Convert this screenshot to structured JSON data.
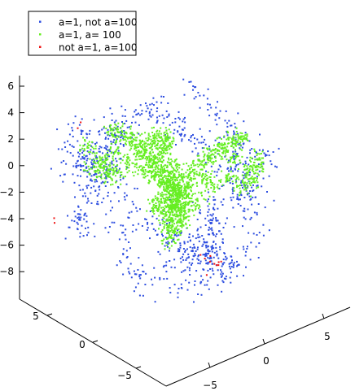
{
  "chart_data": {
    "type": "scatter",
    "projection": "3d",
    "grid": false,
    "legend_position": "top-left",
    "title": "",
    "xlabel": "",
    "ylabel": "",
    "zlabel": "",
    "xlim": [
      -8,
      8
    ],
    "ylim": [
      -8,
      8
    ],
    "zlim": [
      -9,
      7
    ],
    "z_ticks": [
      "6",
      "4",
      "2",
      "0",
      "−2",
      "−4",
      "−6",
      "−8"
    ],
    "left_axis_ticks": [
      "5",
      "0",
      "−5"
    ],
    "right_axis_ticks": [
      "−5",
      "0",
      "5"
    ],
    "series": [
      {
        "name": "a=1, not a=100",
        "color": "#2f4fe0",
        "points": [
          [
            -6.0,
            2.5,
            -0.3
          ],
          [
            -5.8,
            3.0,
            0.5
          ],
          [
            -5.5,
            2.8,
            0.2
          ],
          [
            -5.2,
            3.1,
            1.0
          ],
          [
            -4.8,
            2.6,
            0.8
          ],
          [
            -4.5,
            3.4,
            -0.5
          ],
          [
            -4.2,
            2.9,
            1.6
          ],
          [
            -3.8,
            3.3,
            0.0
          ],
          [
            -6.3,
            2.2,
            2.1
          ],
          [
            -5.6,
            2.0,
            1.4
          ],
          [
            -3.5,
            2.7,
            3.0
          ],
          [
            -3.0,
            3.5,
            2.4
          ],
          [
            -2.5,
            3.8,
            4.0
          ],
          [
            -2.0,
            3.2,
            4.8
          ],
          [
            -1.0,
            2.9,
            5.6
          ],
          [
            0.0,
            2.5,
            6.2
          ],
          [
            1.0,
            2.0,
            5.8
          ],
          [
            2.0,
            1.5,
            5.0
          ],
          [
            3.0,
            1.0,
            4.2
          ],
          [
            4.0,
            0.5,
            3.3
          ],
          [
            5.0,
            0.0,
            2.5
          ],
          [
            5.5,
            -0.5,
            1.5
          ],
          [
            5.8,
            -1.0,
            0.6
          ],
          [
            5.5,
            -1.5,
            -0.2
          ],
          [
            5.0,
            -1.8,
            0.4
          ],
          [
            4.5,
            -1.2,
            0.9
          ],
          [
            4.0,
            -2.0,
            1.2
          ],
          [
            3.5,
            -2.5,
            2.0
          ],
          [
            3.0,
            -3.0,
            2.8
          ],
          [
            2.5,
            -3.5,
            3.6
          ],
          [
            6.0,
            0.5,
            0.9
          ],
          [
            6.2,
            0.0,
            1.7
          ],
          [
            -1.5,
            0.5,
            4.4
          ],
          [
            -0.5,
            1.0,
            4.9
          ],
          [
            0.5,
            0.5,
            4.6
          ],
          [
            1.5,
            1.0,
            3.9
          ],
          [
            2.5,
            0.0,
            3.2
          ],
          [
            -2.5,
            2.0,
            3.7
          ],
          [
            -3.5,
            1.5,
            2.8
          ],
          [
            -4.5,
            1.0,
            1.6
          ],
          [
            -5.5,
            0.5,
            0.5
          ],
          [
            -6.0,
            0.0,
            -1.2
          ],
          [
            -5.5,
            -0.5,
            -2.5
          ],
          [
            -5.0,
            -1.0,
            -3.6
          ],
          [
            -4.5,
            -1.5,
            -4.8
          ],
          [
            -4.0,
            -2.0,
            -5.8
          ],
          [
            -3.5,
            -2.5,
            -6.6
          ],
          [
            -3.0,
            -3.0,
            -7.3
          ],
          [
            -2.5,
            -3.5,
            -7.9
          ],
          [
            -2.0,
            -4.0,
            -8.4
          ],
          [
            -1.5,
            -4.5,
            -8.6
          ],
          [
            -1.0,
            -5.0,
            -8.8
          ],
          [
            -0.5,
            -5.2,
            -8.9
          ],
          [
            0.0,
            -5.3,
            -8.7
          ],
          [
            0.5,
            -5.5,
            -8.5
          ],
          [
            -1.2,
            -4.8,
            -8.2
          ],
          [
            -0.8,
            -4.6,
            -7.9
          ],
          [
            -1.6,
            -4.2,
            -7.6
          ],
          [
            -2.2,
            -3.8,
            -7.2
          ],
          [
            -0.4,
            -4.9,
            -7.8
          ],
          [
            -0.2,
            -4.4,
            -7.0
          ],
          [
            -1.0,
            -3.6,
            -6.4
          ],
          [
            -1.8,
            -3.0,
            -6.0
          ],
          [
            -2.6,
            -2.4,
            -5.4
          ],
          [
            0.4,
            -3.8,
            -6.2
          ],
          [
            0.8,
            -3.2,
            -5.2
          ],
          [
            1.2,
            -2.6,
            -4.4
          ],
          [
            1.6,
            -2.0,
            -3.4
          ],
          [
            2.2,
            -1.4,
            -2.6
          ],
          [
            2.8,
            -0.8,
            -1.6
          ],
          [
            3.4,
            -0.2,
            -0.8
          ],
          [
            -6.4,
            1.2,
            -2.0
          ],
          [
            -6.6,
            1.8,
            -3.1
          ],
          [
            -6.2,
            2.6,
            -4.0
          ],
          [
            -5.8,
            3.4,
            -4.6
          ],
          [
            -5.0,
            4.0,
            -3.2
          ],
          [
            -4.2,
            4.5,
            -2.4
          ],
          [
            -3.4,
            4.8,
            -1.2
          ],
          [
            -2.6,
            5.0,
            0.4
          ],
          [
            -1.8,
            5.2,
            1.6
          ],
          [
            -1.0,
            5.0,
            2.6
          ],
          [
            3.6,
            -3.8,
            0.2
          ],
          [
            4.4,
            -3.2,
            -0.6
          ],
          [
            5.0,
            -2.6,
            -1.8
          ],
          [
            5.4,
            -2.0,
            -3.0
          ],
          [
            5.2,
            -1.4,
            -4.2
          ],
          [
            4.6,
            -0.8,
            -5.2
          ],
          [
            3.8,
            -0.4,
            -6.0
          ],
          [
            2.8,
            -0.2,
            -6.8
          ],
          [
            1.8,
            0.0,
            -7.4
          ],
          [
            0.8,
            0.2,
            -7.9
          ],
          [
            -1.4,
            2.4,
            -6.8
          ],
          [
            -2.4,
            2.2,
            -6.0
          ],
          [
            -3.2,
            2.0,
            -5.0
          ],
          [
            -4.0,
            1.6,
            -4.2
          ],
          [
            1.6,
            -4.4,
            1.4
          ],
          [
            0.8,
            -4.8,
            2.2
          ],
          [
            0.0,
            -5.0,
            3.0
          ],
          [
            -0.8,
            -4.6,
            3.8
          ],
          [
            -1.6,
            -4.0,
            4.4
          ],
          [
            4.8,
            1.8,
            -1.4
          ],
          [
            4.2,
            2.6,
            -2.6
          ],
          [
            3.4,
            3.2,
            -3.6
          ],
          [
            2.4,
            3.8,
            -4.6
          ],
          [
            1.4,
            4.2,
            -5.4
          ],
          [
            0.4,
            4.4,
            -6.0
          ],
          [
            -6.8,
            3.6,
            -0.8
          ],
          [
            -7.0,
            3.0,
            0.6
          ],
          [
            -7.2,
            2.2,
            1.8
          ],
          [
            6.4,
            -2.6,
            2.6
          ],
          [
            6.6,
            -1.8,
            3.4
          ],
          [
            6.2,
            -0.8,
            4.2
          ]
        ]
      },
      {
        "name": "a=1, a= 100",
        "color": "#66ee22",
        "points": [
          [
            -1.0,
            0.0,
            0.0
          ],
          [
            -0.8,
            0.3,
            -0.3
          ],
          [
            -0.5,
            -0.2,
            -0.6
          ],
          [
            -0.2,
            0.4,
            0.2
          ],
          [
            0.0,
            0.0,
            -0.8
          ],
          [
            0.3,
            -0.4,
            -1.1
          ],
          [
            0.5,
            0.2,
            -0.4
          ],
          [
            0.8,
            -0.1,
            0.3
          ],
          [
            -1.2,
            0.6,
            0.6
          ],
          [
            -1.5,
            0.8,
            1.2
          ],
          [
            -1.8,
            1.0,
            1.6
          ],
          [
            -2.2,
            1.2,
            2.0
          ],
          [
            -2.6,
            1.4,
            2.4
          ],
          [
            -3.0,
            1.6,
            2.7
          ],
          [
            -3.4,
            1.8,
            2.9
          ],
          [
            -3.8,
            2.0,
            3.1
          ],
          [
            1.2,
            -0.6,
            0.8
          ],
          [
            1.6,
            -0.9,
            1.3
          ],
          [
            2.0,
            -1.2,
            1.8
          ],
          [
            2.4,
            -1.5,
            2.2
          ],
          [
            2.8,
            -1.8,
            2.6
          ],
          [
            3.2,
            -2.0,
            3.0
          ],
          [
            3.6,
            -2.2,
            3.3
          ],
          [
            4.0,
            -2.4,
            3.6
          ],
          [
            -0.6,
            -0.6,
            -1.8
          ],
          [
            -0.9,
            -0.9,
            -2.6
          ],
          [
            -1.2,
            -1.2,
            -3.4
          ],
          [
            -1.5,
            -1.5,
            -4.2
          ],
          [
            -1.8,
            -1.8,
            -5.0
          ],
          [
            -2.0,
            -2.0,
            -5.6
          ],
          [
            -2.1,
            -2.2,
            -6.1
          ],
          [
            -0.3,
            -0.9,
            -2.2
          ],
          [
            -0.5,
            -1.3,
            -3.0
          ],
          [
            -0.8,
            -1.6,
            -3.8
          ],
          [
            -1.0,
            -2.0,
            -4.6
          ],
          [
            -4.2,
            2.2,
            0.2
          ],
          [
            -4.6,
            2.4,
            0.6
          ],
          [
            -5.0,
            2.6,
            0.0
          ],
          [
            -4.4,
            2.0,
            -0.4
          ],
          [
            -3.6,
            1.8,
            -0.2
          ],
          [
            -3.0,
            1.2,
            0.4
          ],
          [
            4.4,
            -2.6,
            1.0
          ],
          [
            4.8,
            -2.8,
            1.6
          ],
          [
            5.0,
            -2.4,
            0.6
          ],
          [
            4.2,
            -2.0,
            0.2
          ],
          [
            3.4,
            -1.6,
            0.6
          ],
          [
            2.6,
            -1.0,
            0.0
          ],
          [
            0.2,
            1.4,
            2.6
          ],
          [
            0.6,
            1.8,
            3.4
          ],
          [
            1.0,
            2.2,
            4.1
          ],
          [
            1.4,
            2.6,
            4.7
          ],
          [
            -0.2,
            2.0,
            3.8
          ],
          [
            -0.6,
            1.6,
            3.0
          ],
          [
            -1.4,
            -0.4,
            -1.0
          ],
          [
            -2.0,
            0.0,
            -0.6
          ],
          [
            -2.6,
            0.4,
            -0.2
          ],
          [
            1.6,
            0.6,
            -0.4
          ],
          [
            2.2,
            0.2,
            -0.8
          ],
          [
            0.4,
            0.8,
            -1.6
          ],
          [
            -0.2,
            1.2,
            -2.2
          ],
          [
            -1.4,
            0.4,
            -2.6
          ],
          [
            -1.0,
            -0.2,
            -1.4
          ],
          [
            0.1,
            -0.6,
            -1.4
          ],
          [
            -0.4,
            0.1,
            -1.2
          ],
          [
            0.6,
            0.5,
            0.9
          ],
          [
            -0.8,
            -0.5,
            0.5
          ],
          [
            1.0,
            -0.3,
            -0.2
          ],
          [
            -1.6,
            0.2,
            0.9
          ],
          [
            -2.4,
            0.8,
            1.4
          ],
          [
            2.0,
            -0.8,
            0.4
          ],
          [
            -3.2,
            2.4,
            1.8
          ],
          [
            3.0,
            -2.6,
            1.6
          ],
          [
            -5.4,
            2.8,
            1.4
          ],
          [
            5.4,
            -2.6,
            2.4
          ],
          [
            -0.9,
            0.6,
            -1.9
          ],
          [
            0.7,
            -0.7,
            -2.4
          ]
        ]
      },
      {
        "name": "not a=1, a=100",
        "color": "#ee1111",
        "points": [
          [
            -1.2,
            -4.8,
            -8.5
          ],
          [
            -0.9,
            -5.0,
            -8.7
          ],
          [
            -0.6,
            -5.1,
            -8.8
          ],
          [
            -0.3,
            -5.2,
            -8.6
          ],
          [
            0.0,
            -5.1,
            -8.4
          ],
          [
            -1.5,
            -4.7,
            -8.3
          ],
          [
            -0.8,
            -4.9,
            -8.2
          ],
          [
            -0.4,
            -5.3,
            -8.9
          ],
          [
            -7.2,
            4.2,
            -4.0
          ],
          [
            -7.0,
            4.4,
            -4.2
          ],
          [
            -6.8,
            1.8,
            2.4
          ],
          [
            -6.9,
            2.0,
            2.0
          ],
          [
            3.6,
            0.9,
            -5.6
          ],
          [
            1.0,
            -3.4,
            -7.6
          ]
        ]
      }
    ]
  }
}
